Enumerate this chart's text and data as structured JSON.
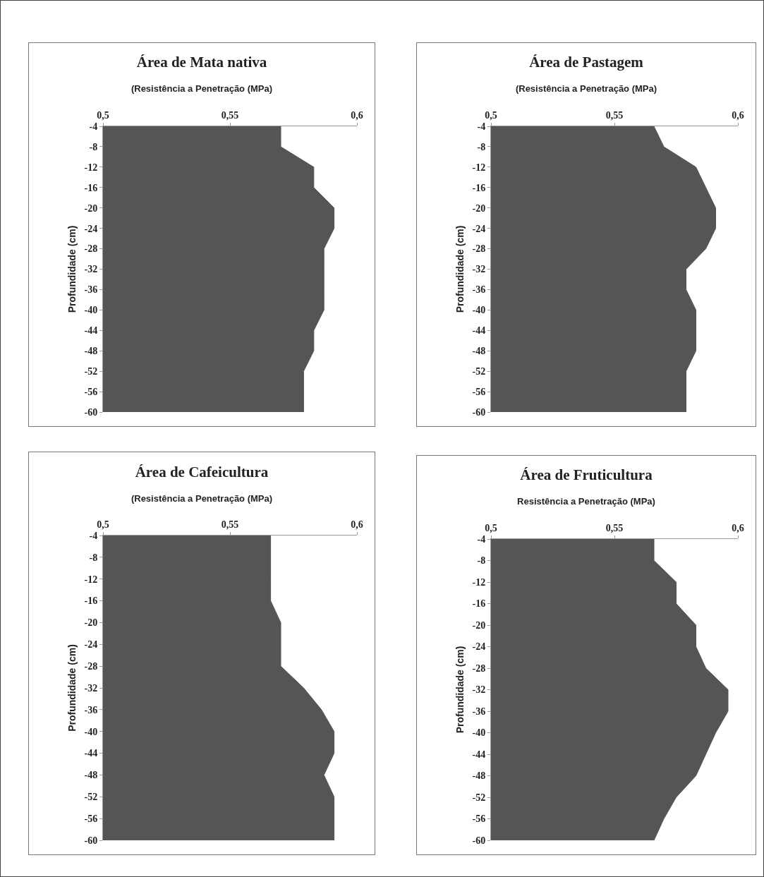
{
  "chart_data": [
    {
      "type": "area",
      "orientation": "horizontal",
      "title": "Área de Mata nativa",
      "subtitle": "(Resistência a Penetração (MPa)",
      "ylabel": "Profundidade (cm)",
      "color": "#555557",
      "categories": [
        "-4",
        "-8",
        "-12",
        "-16",
        "-20",
        "-24",
        "-28",
        "-32",
        "-36",
        "-40",
        "-44",
        "-48",
        "-52",
        "-56",
        "-60"
      ],
      "values": [
        0.57,
        0.57,
        0.583,
        0.583,
        0.591,
        0.591,
        0.587,
        0.587,
        0.587,
        0.587,
        0.583,
        0.583,
        0.579,
        0.579,
        0.579
      ],
      "xlim": [
        0.5,
        0.6
      ],
      "xticks": [
        {
          "value": 0.5,
          "label": "0,5"
        },
        {
          "value": 0.55,
          "label": "0,55"
        },
        {
          "value": 0.6,
          "label": "0,6"
        }
      ]
    },
    {
      "type": "area",
      "orientation": "horizontal",
      "title": "Área de Pastagem",
      "subtitle": "(Resistência a Penetração (MPa)",
      "ylabel": "Profundidade (cm)",
      "color": "#555557",
      "categories": [
        "-4",
        "-8",
        "-12",
        "-16",
        "-20",
        "-24",
        "-28",
        "-32",
        "-36",
        "-40",
        "-44",
        "-48",
        "-52",
        "-56",
        "-60"
      ],
      "values": [
        0.566,
        0.57,
        0.583,
        0.587,
        0.591,
        0.591,
        0.587,
        0.579,
        0.579,
        0.583,
        0.583,
        0.583,
        0.579,
        0.579,
        0.579
      ],
      "xlim": [
        0.5,
        0.6
      ],
      "xticks": [
        {
          "value": 0.5,
          "label": "0,5"
        },
        {
          "value": 0.55,
          "label": "0,55"
        },
        {
          "value": 0.6,
          "label": "0,6"
        }
      ]
    },
    {
      "type": "area",
      "orientation": "horizontal",
      "title": "Área de Cafeicultura",
      "subtitle": "(Resistência a Penetração (MPa)",
      "ylabel": "Profundidade (cm)",
      "color": "#555557",
      "categories": [
        "-4",
        "-8",
        "-12",
        "-16",
        "-20",
        "-24",
        "-28",
        "-32",
        "-36",
        "-40",
        "-44",
        "-48",
        "-52",
        "-56",
        "-60"
      ],
      "values": [
        0.566,
        0.566,
        0.566,
        0.566,
        0.57,
        0.57,
        0.57,
        0.579,
        0.586,
        0.591,
        0.591,
        0.587,
        0.591,
        0.591,
        0.591
      ],
      "xlim": [
        0.5,
        0.6
      ],
      "xticks": [
        {
          "value": 0.5,
          "label": "0,5"
        },
        {
          "value": 0.55,
          "label": "0,55"
        },
        {
          "value": 0.6,
          "label": "0,6"
        }
      ]
    },
    {
      "type": "area",
      "orientation": "horizontal",
      "title": "Área de Fruticultura",
      "subtitle": "Resistência a Penetração (MPa)",
      "ylabel": "Profundidade (cm)",
      "color": "#555557",
      "categories": [
        "-4",
        "-8",
        "-12",
        "-16",
        "-20",
        "-24",
        "-28",
        "-32",
        "-36",
        "-40",
        "-44",
        "-48",
        "-52",
        "-56",
        "-60"
      ],
      "values": [
        0.566,
        0.566,
        0.575,
        0.575,
        0.583,
        0.583,
        0.587,
        0.596,
        0.596,
        0.591,
        0.587,
        0.583,
        0.575,
        0.57,
        0.566
      ],
      "xlim": [
        0.5,
        0.6
      ],
      "xticks": [
        {
          "value": 0.5,
          "label": "0,5"
        },
        {
          "value": 0.55,
          "label": "0,55"
        },
        {
          "value": 0.6,
          "label": "0,6"
        }
      ]
    }
  ]
}
